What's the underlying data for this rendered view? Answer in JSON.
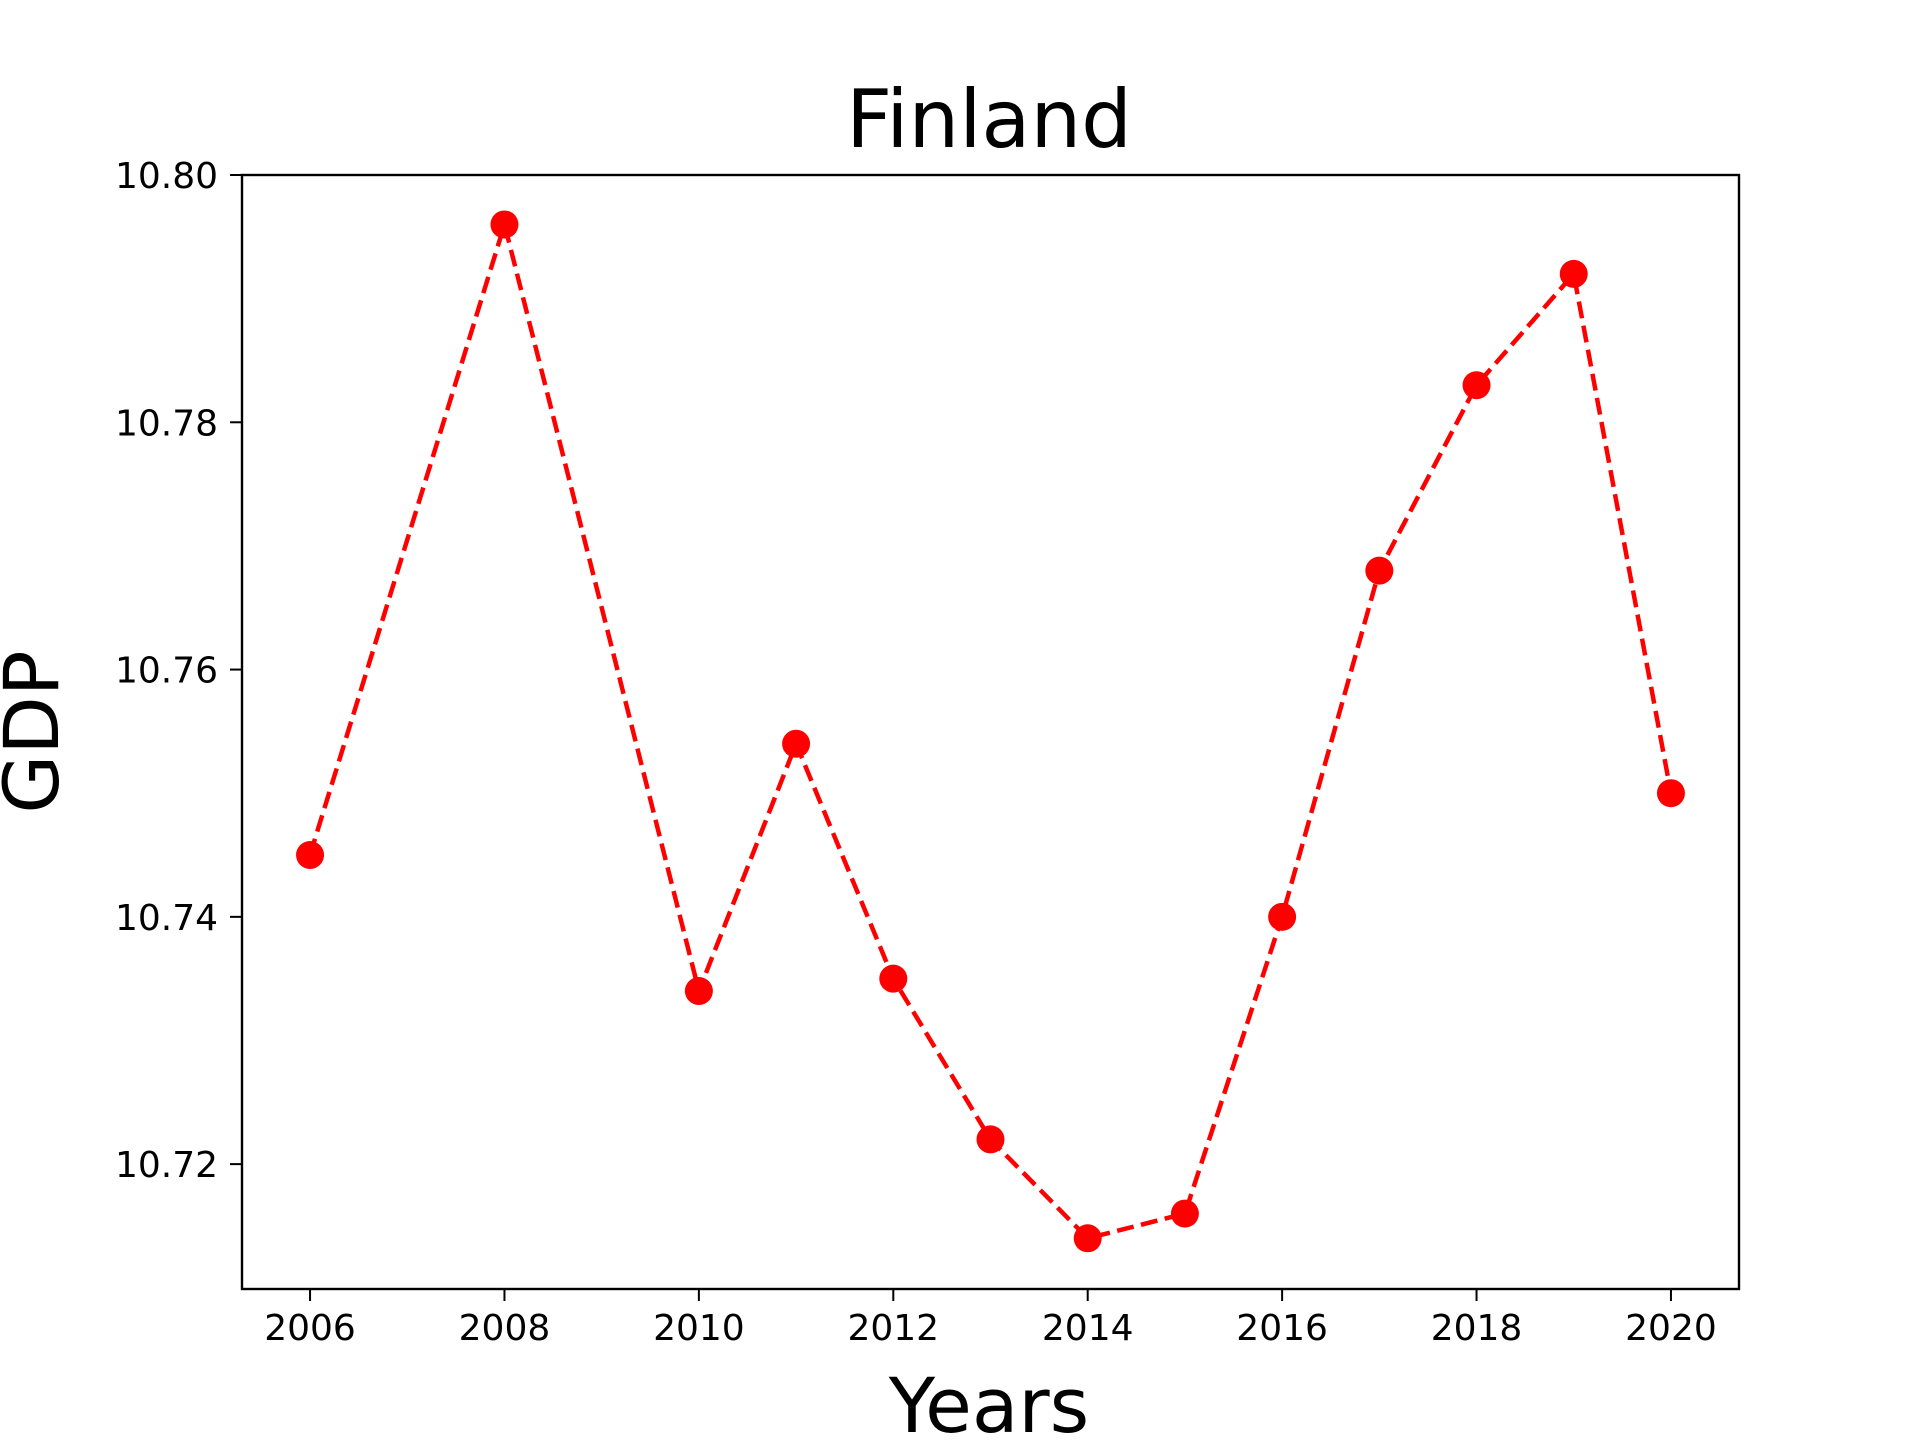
{
  "chart_data": {
    "type": "line",
    "title": "Finland",
    "xlabel": "Years",
    "ylabel": "GDP",
    "x": [
      2006,
      2008,
      2010,
      2011,
      2012,
      2013,
      2014,
      2015,
      2016,
      2017,
      2018,
      2019,
      2020
    ],
    "series": [
      {
        "values": [
          10.745,
          10.796,
          10.734,
          10.754,
          10.735,
          10.722,
          10.714,
          10.716,
          10.74,
          10.768,
          10.783,
          10.792,
          10.75
        ],
        "color": "#ff0000",
        "line_style": "dashed",
        "marker": "circle"
      }
    ],
    "xticks": [
      "2006",
      "2008",
      "2010",
      "2012",
      "2014",
      "2016",
      "2018",
      "2020"
    ],
    "yticks": [
      "10.72",
      "10.74",
      "10.76",
      "10.78",
      "10.80"
    ],
    "xlim": [
      2005.3,
      2020.7
    ],
    "ylim": [
      10.7099,
      10.8
    ],
    "grid": false,
    "legend": "none"
  }
}
